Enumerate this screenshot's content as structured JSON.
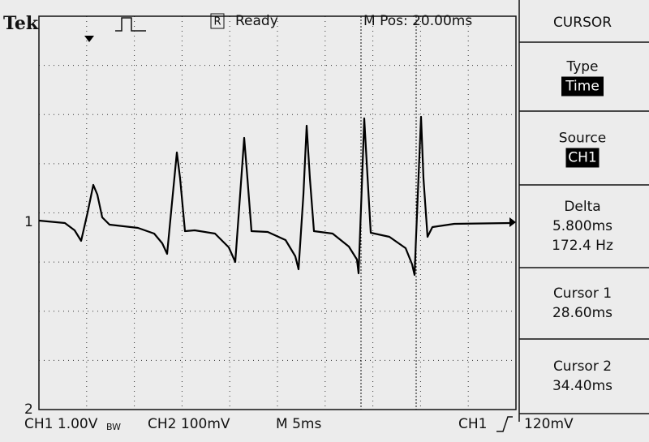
{
  "header": {
    "brand": "Tek",
    "status": "Ready",
    "position": "M Pos: 20.00ms",
    "menu_title": "CURSOR"
  },
  "menu": [
    {
      "label": "Type",
      "value": "Time"
    },
    {
      "label": "Source",
      "value": "CH1"
    },
    {
      "label": "Delta",
      "values": [
        "5.800ms",
        "172.4 Hz"
      ]
    },
    {
      "label": "Cursor 1",
      "values": [
        "28.60ms"
      ]
    },
    {
      "label": "Cursor 2",
      "values": [
        "34.40ms"
      ]
    }
  ],
  "markers": {
    "ch1": "1",
    "ch2": "2"
  },
  "footer": {
    "ch1": "CH1 1.00V",
    "bw": "BW",
    "ch2": "CH2 100mV",
    "timebase": "M 5ms",
    "trigger_source": "CH1",
    "trigger_level": "120mV"
  }
}
